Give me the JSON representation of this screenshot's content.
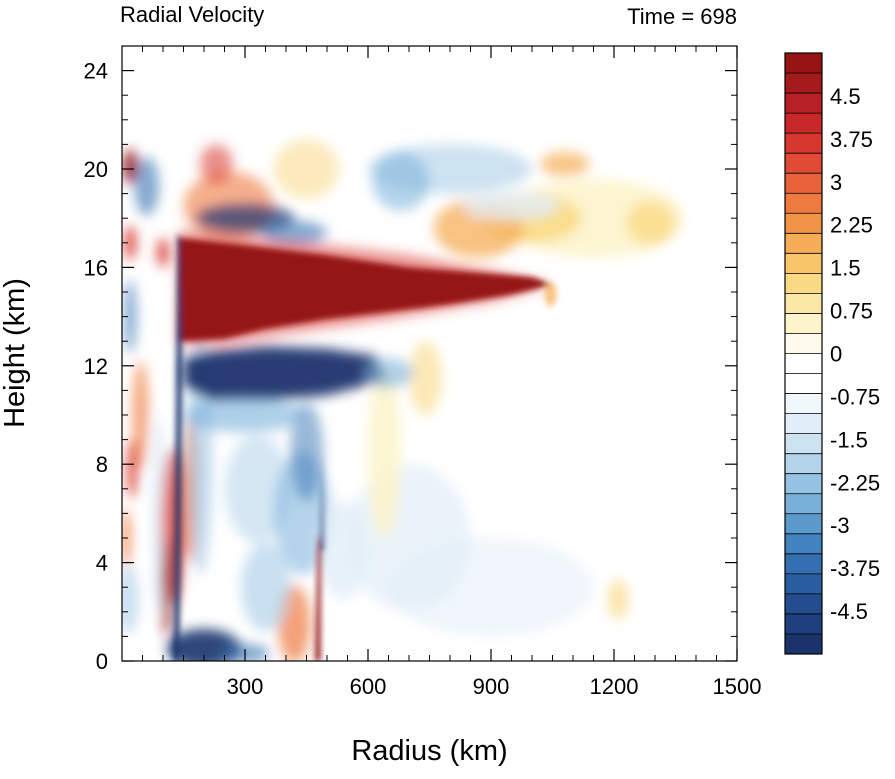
{
  "chart_data": {
    "type": "heatmap",
    "title_left": "Radial Velocity",
    "title_right": "Time = 698",
    "xlabel": "Radius (km)",
    "ylabel": "Height (km)",
    "xlim": [
      0,
      1500
    ],
    "ylim": [
      0,
      25
    ],
    "xticks": [
      300,
      600,
      900,
      1200,
      1500
    ],
    "yticks": [
      0,
      4,
      8,
      12,
      16,
      20,
      24
    ],
    "colorbar": {
      "vmin": -5.25,
      "vmax": 5.25,
      "step": 0.375,
      "labels": [
        "4.5",
        "3.75",
        "3",
        "2.25",
        "1.5",
        "0.75",
        "0",
        "-0.75",
        "-1.5",
        "-2.25",
        "-3",
        "-3.75",
        "-4.5"
      ],
      "label_values": [
        4.5,
        3.75,
        3,
        2.25,
        1.5,
        0.75,
        0,
        -0.75,
        -1.5,
        -2.25,
        -3,
        -3.75,
        -4.5
      ],
      "colors_top_to_bottom": [
        "#951515",
        "#a51a1d",
        "#b72024",
        "#c9282a",
        "#d8372f",
        "#e14a34",
        "#e8623a",
        "#ee7a3f",
        "#f29448",
        "#f5ae57",
        "#f8c56b",
        "#fad985",
        "#fbe8a6",
        "#fdf4cc",
        "#fffaeb",
        "#ffffff",
        "#ffffff",
        "#f1f8fc",
        "#e1eef8",
        "#cce2f1",
        "#b2d3ea",
        "#96c3e3",
        "#79b0da",
        "#5c9ace",
        "#4483c1",
        "#3470b1",
        "#2b5ea1",
        "#244d8f",
        "#1f3f7e",
        "#1b336d"
      ]
    },
    "features": [
      {
        "sign": 1,
        "desc": "strong outflow layer",
        "r": [
          150,
          1050
        ],
        "z": [
          13,
          17
        ]
      },
      {
        "sign": -1,
        "desc": "inflow layer below outflow",
        "r": [
          150,
          700
        ],
        "z": [
          10.5,
          12.5
        ]
      },
      {
        "sign": 1,
        "desc": "upper outflow band",
        "r": [
          700,
          1400
        ],
        "z": [
          16.5,
          19
        ]
      },
      {
        "sign": -1,
        "desc": "low-level inflow",
        "r": [
          130,
          300
        ],
        "z": [
          0,
          1
        ]
      }
    ]
  }
}
